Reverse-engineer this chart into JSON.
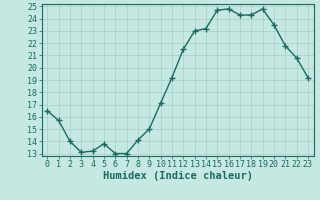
{
  "x": [
    0,
    1,
    2,
    3,
    4,
    5,
    6,
    7,
    8,
    9,
    10,
    11,
    12,
    13,
    14,
    15,
    16,
    17,
    18,
    19,
    20,
    21,
    22,
    23
  ],
  "y": [
    16.5,
    15.7,
    14.0,
    13.1,
    13.2,
    13.8,
    13.0,
    13.0,
    14.1,
    15.0,
    17.1,
    19.2,
    21.5,
    23.0,
    23.2,
    24.7,
    24.8,
    24.3,
    24.3,
    24.8,
    23.5,
    21.8,
    20.8,
    19.2
  ],
  "xlabel": "Humidex (Indice chaleur)",
  "ylim_min": 12.8,
  "ylim_max": 25.2,
  "xlim_min": -0.5,
  "xlim_max": 23.5,
  "yticks": [
    13,
    14,
    15,
    16,
    17,
    18,
    19,
    20,
    21,
    22,
    23,
    24,
    25
  ],
  "xticks": [
    0,
    1,
    2,
    3,
    4,
    5,
    6,
    7,
    8,
    9,
    10,
    11,
    12,
    13,
    14,
    15,
    16,
    17,
    18,
    19,
    20,
    21,
    22,
    23
  ],
  "line_color": "#1a6b5e",
  "marker": "+",
  "marker_size": 4,
  "marker_lw": 1.0,
  "bg_color": "#c5e8e2",
  "grid_color": "#aacfc8",
  "axis_label_fontsize": 7.5,
  "tick_fontsize": 6,
  "linewidth": 1.0
}
